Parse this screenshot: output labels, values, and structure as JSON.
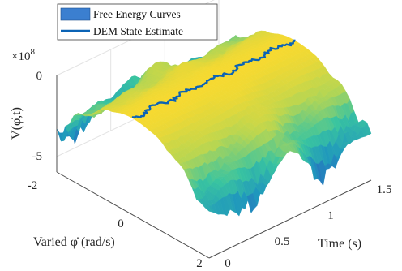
{
  "chart_data": {
    "type": "surface",
    "legend": [
      {
        "label": "Free Energy Curves",
        "kind": "surface",
        "color": "#3b7fd0"
      },
      {
        "label": "DEM State Estimate",
        "kind": "line",
        "color": "#0b63b5"
      }
    ],
    "axes": {
      "x": {
        "label": "Varied φ̇ (rad/s)",
        "ticks": [
          "-2",
          "0",
          "2"
        ],
        "range": [
          -2,
          2
        ]
      },
      "y": {
        "label": "Time (s)",
        "ticks": [
          "0",
          "0.5",
          "1",
          "1.5"
        ],
        "range": [
          0,
          1.5
        ]
      },
      "z": {
        "label": "V(φ̇,t)",
        "ticks": [
          "0",
          "-5"
        ],
        "exponent_label": "×10",
        "exponent": "8",
        "range": [
          -6,
          0
        ]
      }
    },
    "colormap": [
      "#3b1f9a",
      "#2b5cbd",
      "#1f97bd",
      "#39c4a0",
      "#b8d651",
      "#f6d930"
    ],
    "grid": true
  }
}
